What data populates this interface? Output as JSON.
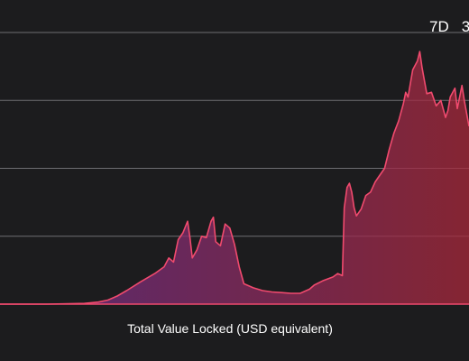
{
  "range_selector": {
    "buttons": [
      {
        "label": "7D",
        "active": false
      },
      {
        "label": "3",
        "active": false
      }
    ]
  },
  "colors": {
    "background": "#1c1c1e",
    "grid": "#6e6e72",
    "line": "#f04a6e",
    "fill_left": "#6b2f8f",
    "fill_right": "#a8283a"
  },
  "chart_data": {
    "type": "area",
    "title": "",
    "xlabel": "Total Value Locked (USD equivalent)",
    "ylabel": "",
    "grid": true,
    "ylim": [
      0,
      4.2
    ],
    "gridlines": [
      1,
      2,
      3,
      4
    ],
    "x_range": [
      0,
      100
    ],
    "series": [
      {
        "name": "",
        "x": [
          0,
          10,
          18,
          21,
          23,
          25,
          27,
          30,
          33,
          35,
          36,
          37,
          38,
          39,
          40,
          40.5,
          41,
          42,
          43,
          44,
          45,
          45.5,
          46,
          47,
          48,
          49,
          50,
          51,
          52,
          54,
          56,
          58,
          60,
          62,
          64,
          66,
          67,
          69,
          71,
          72,
          73,
          73.4,
          74,
          74.5,
          75,
          75.5,
          76,
          77,
          78,
          79,
          80,
          81,
          82,
          83,
          84,
          85,
          86,
          86.5,
          87,
          88,
          89,
          89.5,
          90,
          91,
          92,
          93,
          94,
          95,
          95.5,
          96,
          97,
          97.5,
          98,
          98.5,
          99,
          100
        ],
        "values": [
          0,
          0,
          0.01,
          0.03,
          0.06,
          0.12,
          0.2,
          0.33,
          0.45,
          0.55,
          0.68,
          0.62,
          0.95,
          1.05,
          1.22,
          0.98,
          0.68,
          0.8,
          1.0,
          0.98,
          1.22,
          1.28,
          0.92,
          0.86,
          1.18,
          1.12,
          0.88,
          0.55,
          0.3,
          0.24,
          0.2,
          0.18,
          0.17,
          0.16,
          0.16,
          0.22,
          0.28,
          0.35,
          0.4,
          0.45,
          0.42,
          1.42,
          1.72,
          1.78,
          1.65,
          1.42,
          1.3,
          1.4,
          1.6,
          1.65,
          1.8,
          1.9,
          2.0,
          2.28,
          2.52,
          2.7,
          2.95,
          3.12,
          3.05,
          3.45,
          3.58,
          3.72,
          3.48,
          3.1,
          3.12,
          2.92,
          3.0,
          2.75,
          2.85,
          3.05,
          3.18,
          2.88,
          3.05,
          3.22,
          3.0,
          2.62
        ]
      }
    ]
  }
}
